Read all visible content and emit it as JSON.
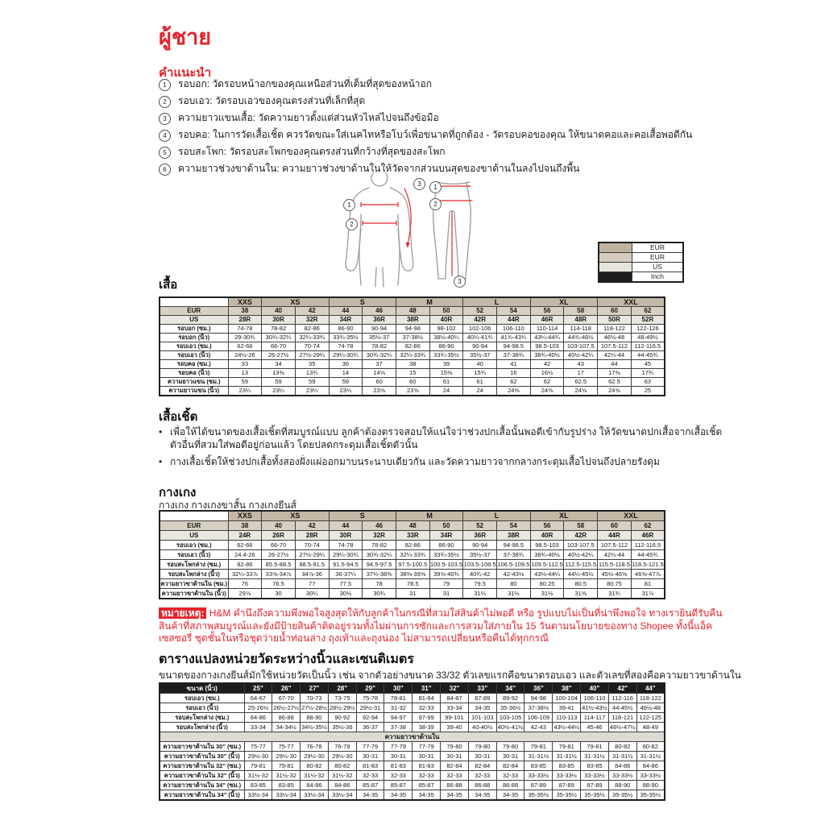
{
  "page": {
    "title": "ผู้ชาย",
    "instructions_heading": "คำแนะนำ",
    "instructions": [
      {
        "num": "1",
        "text": "รอบอก: วัดรอบหน้าอกของคุณเหนือส่วนที่เต็มที่สุดของหน้าอก"
      },
      {
        "num": "2",
        "text": "รอบเอว: วัดรอบเอวของคุณตรงส่วนที่เล็กที่สุด"
      },
      {
        "num": "3",
        "text": "ความยาวแขนเสื้อ: วัดความยาวตั้งแต่ส่วนหัวไหล่ไปจนถึงข้อมือ"
      },
      {
        "num": "4",
        "text": "รอบคอ: ในการวัดเสื้อเชิ้ต ควรวัดขณะใส่เนคไทหรือโบว์เพื่อขนาดที่ถูกต้อง - วัดรอบคอของคุณ ให้ขนาดคอและคอเสื้อพอดีกัน"
      },
      {
        "num": "5",
        "text": "รอบสะโพก: วัดรอบสะโพกของคุณตรงส่วนที่กว้างที่สุดของสะโพก"
      },
      {
        "num": "6",
        "text": "ความยาวช่วงขาด้านใน: ความยาวช่วงขาด้านในให้วัดจากส่วนบนสุดของขาด้านในลงไปจนถึงพื้น"
      }
    ]
  },
  "diagram": {
    "markers": [
      {
        "n": "1"
      },
      {
        "n": "2"
      },
      {
        "n": "3"
      },
      {
        "n": "1"
      },
      {
        "n": "2"
      },
      {
        "n": "3"
      }
    ]
  },
  "legend": {
    "rows": [
      {
        "label": "EUR",
        "color": "#c0b49e"
      },
      {
        "label": "EUR",
        "color": "#d5ccbd"
      },
      {
        "label": "US",
        "color": "#e7e4dd"
      },
      {
        "label": "Inch",
        "color": "#1d1d1b"
      }
    ]
  },
  "shirt_section": {
    "heading": "เสื้อ",
    "table": {
      "groups": [
        {
          "label": "XXS",
          "span": 1
        },
        {
          "label": "XS",
          "span": 2
        },
        {
          "label": "S",
          "span": 2
        },
        {
          "label": "M",
          "span": 2
        },
        {
          "label": "L",
          "span": 2
        },
        {
          "label": "XL",
          "span": 2
        },
        {
          "label": "XXL",
          "span": 2
        }
      ],
      "eur_label": "EUR",
      "eur": [
        "38",
        "40",
        "42",
        "44",
        "46",
        "48",
        "50",
        "52",
        "54",
        "56",
        "58",
        "60",
        "62"
      ],
      "us_label": "US",
      "us": [
        "28R",
        "30R",
        "32R",
        "34R",
        "36R",
        "38R",
        "40R",
        "42R",
        "44R",
        "46R",
        "48R",
        "50R",
        "52R"
      ],
      "rows": [
        {
          "label": "รอบอก (ซม.)",
          "values": [
            "74-78",
            "78-82",
            "82-86",
            "86-90",
            "90-94",
            "94-98",
            "98-102",
            "102-106",
            "106-110",
            "110-114",
            "114-118",
            "118-122",
            "122-126"
          ]
        },
        {
          "label": "รอบอก (นิ้ว)",
          "values": [
            "29-30¾",
            "30¾-32¼",
            "32¼-33¾",
            "33¾-35½",
            "35½-37",
            "37-38½",
            "38½-40¼",
            "40¼-41¾",
            "41¾-43¼",
            "43¼-44¾",
            "44¾-46½",
            "46½-48",
            "48-49½"
          ]
        },
        {
          "label": "รอบเอว (ซม.)",
          "values": [
            "62-66",
            "66-70",
            "70-74",
            "74-78",
            "78-82",
            "82-86",
            "86-90",
            "90-94",
            "94-98.5",
            "98.5-103",
            "103-107.5",
            "107.5-112",
            "112-116.5"
          ]
        },
        {
          "label": "รอบเอว (นิ้ว)",
          "values": [
            "24½-26",
            "26-27½",
            "27½-29¼",
            "29¼-30¾",
            "30¾-32¼",
            "32¼-33¾",
            "33¾-35½",
            "35½-37",
            "37-38¾",
            "38¾-40½",
            "40½-42¼",
            "42¼-44",
            "44-45¾"
          ]
        },
        {
          "label": "รอบคอ (ซม.)",
          "values": [
            "33",
            "34",
            "35",
            "36",
            "37",
            "38",
            "39",
            "40",
            "41",
            "42",
            "43",
            "44",
            "45"
          ]
        },
        {
          "label": "รอบคอ (นิ้ว)",
          "values": [
            "13",
            "13⅜",
            "13¾",
            "14",
            "14⅝",
            "15",
            "15⅜",
            "15¾",
            "16",
            "16½",
            "17",
            "17⅜",
            "17¾"
          ]
        },
        {
          "label": "ความยาวแขน (ซม.)",
          "values": [
            "59",
            "59",
            "59",
            "59",
            "60",
            "60",
            "61",
            "61",
            "62",
            "62",
            "62.5",
            "62.5",
            "63"
          ]
        },
        {
          "label": "ความยาวแขน (นิ้ว)",
          "values": [
            "23¼",
            "23¼",
            "23¼",
            "23¼",
            "23⅝",
            "23⅝",
            "24",
            "24",
            "24⅜",
            "24⅜",
            "24⅝",
            "24⅝",
            "25"
          ]
        }
      ]
    }
  },
  "shirt_note_section": {
    "heading": "เสื้อเชิ้ต",
    "bullets": [
      "เพื่อให้ได้ขนาดของเสื้อเชิ้ตที่สมบูรณ์แบบ ลูกค้าต้องตรวจสอบให้แน่ใจว่าช่วงปกเสื้อนั้นพอดีเข้ากับรูปร่าง ให้วัดขนาดปกเสื้อจากเสื้อเชิ้ตตัวอื่นที่สวมใส่พอดีอยู่ก่อนแล้ว โดยปลดกระดุมเสื้อเชิ้ตตัวนั้น",
      "กางเสื้อเชิ้ตให้ช่วงปกเสื้อทั้งสองฝั่งแผ่ออกมาบนระนาบเดียวกัน และวัดความยาวจากกลางกระดุมเสื้อไปจนถึงปลายรังดุม"
    ]
  },
  "pants_section": {
    "heading": "กางเกง",
    "subtitle": "กางเกง กางเกงขาสั้น กางเกงยีนส์",
    "table": {
      "groups": [
        {
          "label": "XXS",
          "span": 1
        },
        {
          "label": "XS",
          "span": 2
        },
        {
          "label": "S",
          "span": 2
        },
        {
          "label": "M",
          "span": 2
        },
        {
          "label": "L",
          "span": 2
        },
        {
          "label": "XL",
          "span": 2
        },
        {
          "label": "XXL",
          "span": 2
        }
      ],
      "eur_label": "EUR",
      "eur": [
        "38",
        "40",
        "42",
        "44",
        "46",
        "48",
        "50",
        "52",
        "54",
        "56",
        "58",
        "60",
        "62"
      ],
      "us_label": "US",
      "us": [
        "24R",
        "26R",
        "28R",
        "30R",
        "32R",
        "33R",
        "34R",
        "36R",
        "38R",
        "40R",
        "42R",
        "44R",
        "46R"
      ],
      "rows": [
        {
          "label": "รอบเอว (ซม.)",
          "values": [
            "62-66",
            "66-70",
            "70-74",
            "74-78",
            "78-82",
            "82-86",
            "86-90",
            "90-94",
            "94-98.5",
            "98.5-103",
            "103-107.5",
            "107.5-112",
            "112-116.5"
          ]
        },
        {
          "label": "รอบเอว (นิ้ว)",
          "values": [
            "24.4-26",
            "26-27½",
            "27½-29¼",
            "29¼-30¾",
            "30¾-32¼",
            "32¼-33¾",
            "33¾-35½",
            "35½-37",
            "37-38¾",
            "38¾-40½",
            "40½-42¼",
            "42¼-44",
            "44-45¾"
          ]
        },
        {
          "label": "รอบสะโพกล่าง (ซม.)",
          "values": [
            "82-86",
            "85.5-88.5",
            "88.5-91.5",
            "91.5-94.5",
            "94.5-97.5",
            "97.5-100.5",
            "100.5-103.5",
            "103.5-106.5",
            "106.5-109.5",
            "109.5-112.5",
            "112.5-115.5",
            "115.5-118.5",
            "118.5-121.5"
          ]
        },
        {
          "label": "รอบสะโพกล่าง (นิ้ว)",
          "values": [
            "32¼-33⅞",
            "33⅝-34⅞",
            "34⅞-36",
            "36-37¼",
            "37¼-38⅜",
            "38⅜-39⅝",
            "39⅝-40¾",
            "40¾-42",
            "42-43⅛",
            "43⅛-44¼",
            "44¼-45½",
            "45½-46⅝",
            "46⅝-47⅞"
          ]
        },
        {
          "label": "ความยาวขาด้านใน (ซม.)",
          "values": [
            "76",
            "76.5",
            "77",
            "77.5",
            "78",
            "78.5",
            "79",
            "79.5",
            "80",
            "80.25",
            "80.5",
            "80.75",
            "81"
          ]
        },
        {
          "label": "ความยาวขาด้านใน (นิ้ว)",
          "values": [
            "29⅞",
            "30",
            "30¼",
            "30½",
            "30¾",
            "31",
            "31",
            "31¼",
            "31½",
            "31½",
            "31⅝",
            "31¾",
            "31⅞"
          ]
        }
      ]
    }
  },
  "note": {
    "label": "หมายเหตุ:",
    "text": " H&M คำนึงถึงความพึงพอใจสูงสุดให้กับลูกค้าในกรณีที่สวมใส่สินค้าไม่พอดี หรือ รูปแบบไม่เป็นที่น่าพึงพอใจ ทางเรายินดีรับคืนสินค้าที่สภาพสมบูรณ์และยังมีป้ายสินค้าติดอยู่รวมทั้งไม่ผ่านการซักและการสวมใส่ภายใน 15 วันตามนโยบายของทาง Shopee ทั้งนี้แอ็คเซสซอรี่ ชุดชั้นในหรือชุดว่ายน้ำท่อนล่าง ถุงเท้าและถุงน่อง ไม่สามารถเปลี่ยนหรือคืนได้ทุกกรณี"
  },
  "conversion_section": {
    "heading": "ตารางแปลงหน่วยวัดระหว่างนิ้วและเซนติเมตร",
    "subtitle": "ขนาดของกางเกงยีนส์มักใช้หน่วยวัดเป็นนิ้ว เช่น จากตัวอย่างขนาด 33/32 ตัวเลขแรกคือขนาดรอบเอว และตัวเลขที่สองคือความยาวขาด้านใน",
    "table": {
      "header_label": "ขนาด (นิ้ว)",
      "sizes": [
        "25\"",
        "26\"",
        "27\"",
        "28\"",
        "29\"",
        "30\"",
        "31\"",
        "32\"",
        "33\"",
        "34\"",
        "36\"",
        "38\"",
        "40\"",
        "42\"",
        "44\""
      ],
      "rows": [
        {
          "label": "รอบเอว (ซม.)",
          "values": [
            "64-67",
            "67-70",
            "70-73",
            "73-75",
            "75-78",
            "78-81",
            "81-84",
            "84-87",
            "87-89",
            "89-92",
            "94-98",
            "100-104",
            "106-110",
            "112-116",
            "118-122"
          ]
        },
        {
          "label": "รอบเอว (นิ้ว)",
          "values": [
            "25-26½",
            "26½-27½",
            "27½-28½",
            "28½-29½",
            "29½-31",
            "31-32",
            "32-33",
            "33-34",
            "34-35",
            "35-36½",
            "37-38½",
            "39-41",
            "41½-43½",
            "44-45½",
            "46½-48"
          ]
        },
        {
          "label": "รอบสะโพกล่าง (ซม.)",
          "values": [
            "84-86",
            "86-88",
            "88-90",
            "90-92",
            "92-94",
            "94-97",
            "97-99",
            "99-101",
            "101-103",
            "103-105",
            "106-109",
            "110-113",
            "114-117",
            "118-121",
            "122-125"
          ]
        },
        {
          "label": "รอบสะโพกล่าง (นิ้ว)",
          "values": [
            "33-34",
            "34-34½",
            "34½-35½",
            "35½-36",
            "36-37",
            "37-38",
            "38-39",
            "39-40",
            "40-40½",
            "40½-41½",
            "42-43",
            "43½-44½",
            "45-46",
            "46½-47½",
            "48-49"
          ]
        }
      ],
      "band_label": "ความยาวขาด้านใน",
      "inseam_rows": [
        {
          "label": "ความยาวขาด้านใน 30\" (ซม.)",
          "values": [
            "75-77",
            "75-77",
            "76-78",
            "76-78",
            "77-79",
            "77-79",
            "77-79",
            "79-80",
            "79-80",
            "79-80",
            "79-81",
            "79-81",
            "79-81",
            "80-82",
            "80-82"
          ]
        },
        {
          "label": "ความยาวขาด้านใน 30\" (นิ้ว)",
          "values": [
            "29½-30",
            "29½-30",
            "29½-30",
            "29½-30",
            "30-31",
            "30-31",
            "30-31",
            "30-31",
            "30-31",
            "30-31",
            "31-31½",
            "31-31½",
            "31-31½",
            "31-31½",
            "31-31½"
          ]
        },
        {
          "label": "ความยาวขาด้านใน 32\" (ซม.)",
          "values": [
            "79-81",
            "79-81",
            "80-82",
            "80-82",
            "81-83",
            "81-83",
            "81-83",
            "82-84",
            "82-84",
            "82-84",
            "83-85",
            "83-85",
            "83-85",
            "84-86",
            "84-86"
          ]
        },
        {
          "label": "ความยาวขาด้านใน 32\" (นิ้ว)",
          "values": [
            "31½-32",
            "31½-32",
            "31½-32",
            "31½-32",
            "32-33",
            "32-33",
            "32-33",
            "32-33",
            "32-33",
            "32-33",
            "33-33½",
            "33-33½",
            "33-33½",
            "33-33½",
            "33-33½"
          ]
        },
        {
          "label": "ความยาวขาด้านใน 34\" (ซม.)",
          "values": [
            "83-85",
            "83-85",
            "84-86",
            "84-86",
            "85-87",
            "85-87",
            "85-87",
            "86-88",
            "86-88",
            "86-88",
            "87-89",
            "87-89",
            "87-89",
            "88-90",
            "88-90"
          ]
        },
        {
          "label": "ความยาวขาด้านใน 34\" (นิ้ว)",
          "values": [
            "33½-34",
            "33½-34",
            "33½-34",
            "33½-34",
            "34-35",
            "34-35",
            "34-35",
            "34-35",
            "34-35",
            "34-35",
            "35-35½",
            "35-35½",
            "35-35½",
            "35-35½",
            "35-35½"
          ]
        }
      ]
    }
  }
}
